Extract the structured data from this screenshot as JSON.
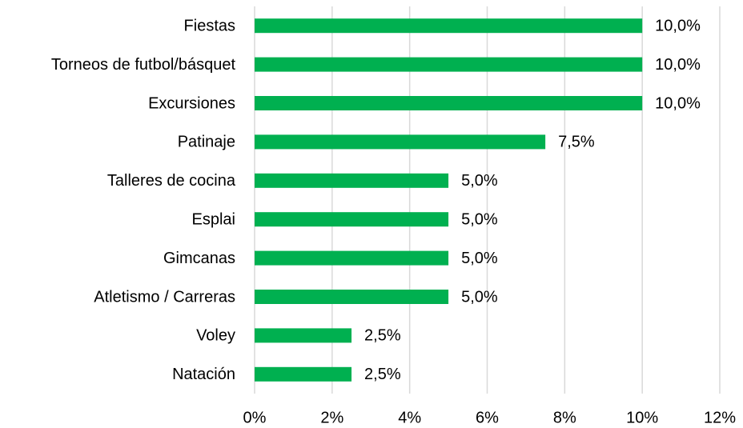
{
  "chart_data": {
    "type": "bar",
    "orientation": "horizontal",
    "categories": [
      "Fiestas",
      "Torneos de futbol/básquet",
      "Excursiones",
      "Patinaje",
      "Talleres de cocina",
      "Esplai",
      "Gimcanas",
      "Atletismo / Carreras",
      "Voley",
      "Natación"
    ],
    "values": [
      10,
      10,
      10,
      7.5,
      5,
      5,
      5,
      5,
      2.5,
      2.5
    ],
    "value_labels": [
      "10,0%",
      "10,0%",
      "10,0%",
      "7,5%",
      "5,0%",
      "5,0%",
      "5,0%",
      "5,0%",
      "2,5%",
      "2,5%"
    ],
    "color": "#00b050",
    "xlim": [
      0,
      12
    ],
    "xticks": [
      {
        "value": 0,
        "label": "0%"
      },
      {
        "value": 2,
        "label": "2%"
      },
      {
        "value": 4,
        "label": "4%"
      },
      {
        "value": 6,
        "label": "6%"
      },
      {
        "value": 8,
        "label": "8%"
      },
      {
        "value": 10,
        "label": "10%"
      },
      {
        "value": 12,
        "label": "12%"
      }
    ],
    "grid": true
  }
}
